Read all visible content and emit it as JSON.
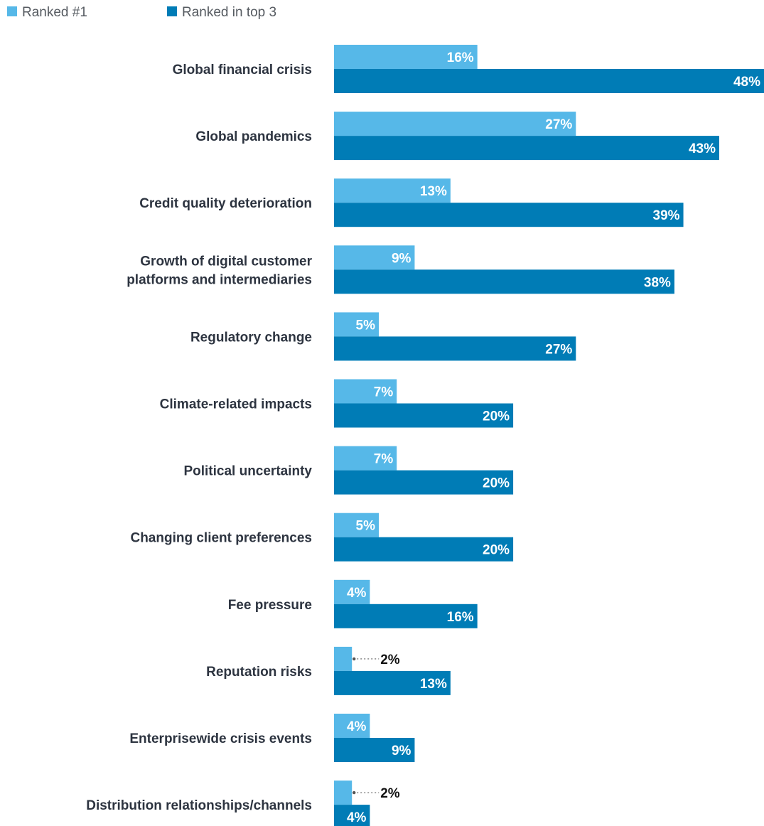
{
  "chart_data": {
    "type": "bar",
    "orientation": "horizontal",
    "grid": false,
    "legend_position": "top-left",
    "xlim": [
      0,
      48
    ],
    "colors": {
      "rank1": "#56b8e8",
      "top3": "#007cb6",
      "leader": "#888888"
    },
    "series": [
      {
        "name": "Ranked #1",
        "color": "#56b8e8",
        "values": [
          16,
          27,
          13,
          9,
          5,
          7,
          7,
          5,
          4,
          2,
          4,
          2
        ],
        "labels": [
          "16%",
          "27%",
          "13%",
          "9%",
          "5%",
          "7%",
          "7%",
          "5%",
          "4%",
          "2%",
          "4%",
          "2%"
        ]
      },
      {
        "name": "Ranked in top 3",
        "color": "#007cb6",
        "values": [
          48,
          43,
          39,
          38,
          27,
          20,
          20,
          20,
          16,
          13,
          9,
          4
        ],
        "labels": [
          "48%",
          "43%",
          "39%",
          "38%",
          "27%",
          "20%",
          "20%",
          "20%",
          "16%",
          "13%",
          "9%",
          "4%"
        ]
      }
    ],
    "categories": [
      [
        "Global financial crisis"
      ],
      [
        "Global pandemics"
      ],
      [
        "Credit quality deterioration"
      ],
      [
        "Growth of digital customer",
        "platforms and intermediaries"
      ],
      [
        "Regulatory change"
      ],
      [
        "Climate-related impacts"
      ],
      [
        "Political uncertainty"
      ],
      [
        "Changing client preferences"
      ],
      [
        "Fee pressure"
      ],
      [
        "Reputation risks"
      ],
      [
        "Enterprisewide crisis events"
      ],
      [
        "Distribution relationships/channels"
      ]
    ]
  }
}
